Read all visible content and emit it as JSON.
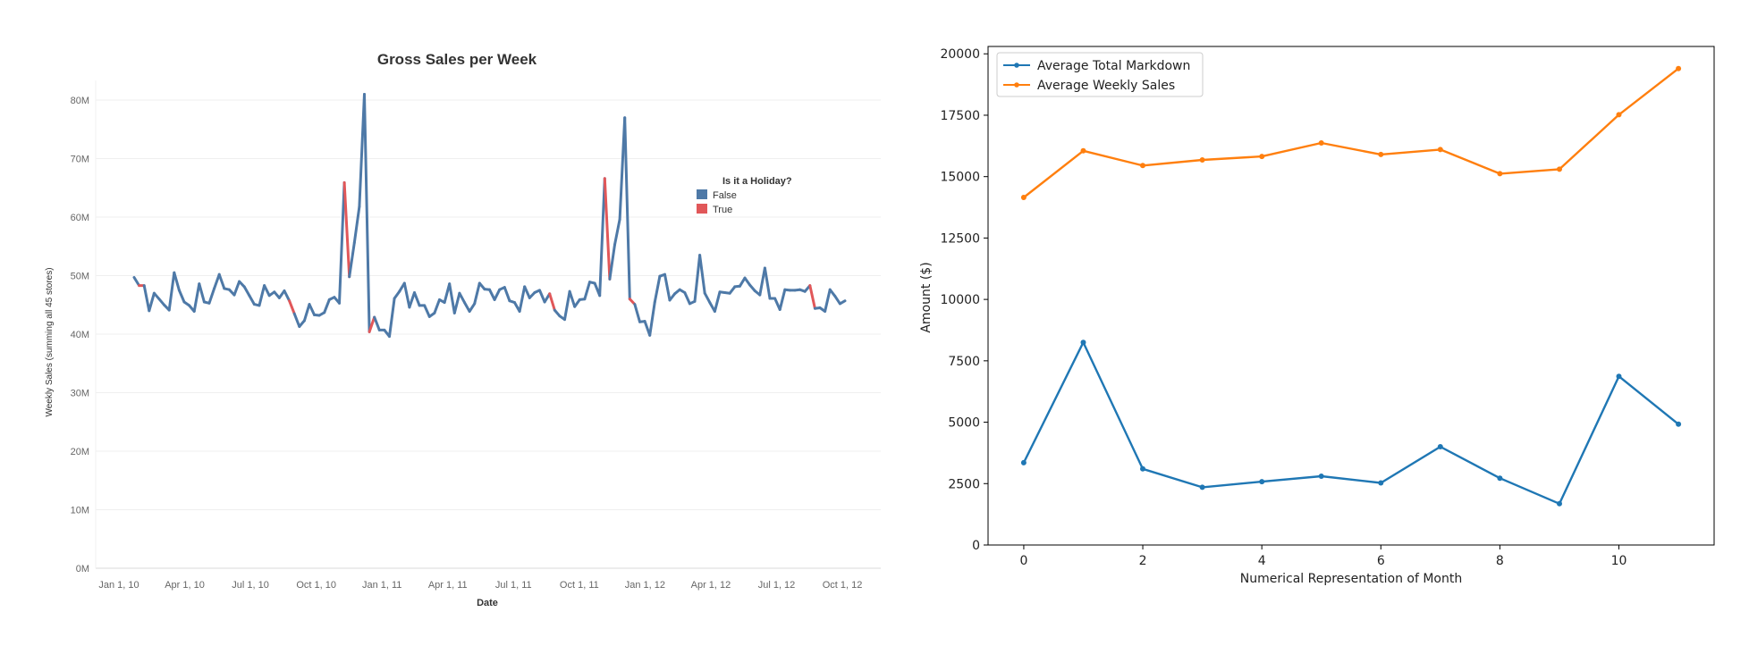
{
  "chart_data": [
    {
      "type": "line",
      "title": "Gross Sales per Week",
      "xlabel": "Date",
      "ylabel": "Weekly Sales (summing all 45 stores)",
      "y_ticks": [
        "0M",
        "10M",
        "20M",
        "30M",
        "40M",
        "50M",
        "60M",
        "70M",
        "80M"
      ],
      "x_ticks": [
        "Jan 1, 10",
        "Apr 1, 10",
        "Jul 1, 10",
        "Oct 1, 10",
        "Jan 1, 11",
        "Apr 1, 11",
        "Jul 1, 11",
        "Oct 1, 11",
        "Jan 1, 12",
        "Apr 1, 12",
        "Jul 1, 12",
        "Oct 1, 12"
      ],
      "ylim": [
        0,
        85
      ],
      "x_unit": "weeks (Date)",
      "legend": {
        "title": "Is it a Holiday?",
        "entries": [
          {
            "label": "False",
            "color": "#4e79a7"
          },
          {
            "label": "True",
            "color": "#e15759"
          }
        ],
        "placement": "top-right"
      },
      "grid": true,
      "series": [
        {
          "color": "#4e79a7",
          "values": [
            49.7,
            48.3,
            48.3,
            44.0,
            47.0,
            46.0,
            45.0,
            44.1,
            50.5,
            47.5,
            45.5,
            44.9,
            43.9,
            48.6,
            45.5,
            45.3,
            47.8,
            50.2,
            47.8,
            47.6,
            46.7,
            49.0,
            48.1,
            46.6,
            45.1,
            44.9,
            48.3,
            46.6,
            47.2,
            46.2,
            47.4,
            45.7,
            43.5,
            41.3,
            42.3,
            45.1,
            43.3,
            43.2,
            43.7,
            45.9,
            46.3,
            45.3,
            65.9,
            49.8,
            55.6,
            61.8,
            81.0,
            40.4,
            42.9,
            40.7,
            40.7,
            39.6,
            46.1,
            47.3,
            48.7,
            44.6,
            47.1,
            44.9,
            44.9,
            43.0,
            43.6,
            45.9,
            45.4,
            48.6,
            43.6,
            47.0,
            45.4,
            43.9,
            45.2,
            48.7,
            47.7,
            47.6,
            45.9,
            47.6,
            48.0,
            45.7,
            45.4,
            43.9,
            48.1,
            46.2,
            47.1,
            47.5,
            45.5,
            46.9,
            44.1,
            43.1,
            42.5,
            47.3,
            44.7,
            45.9,
            46.0,
            48.9,
            48.7,
            46.6,
            66.6,
            49.4,
            55.3,
            59.6,
            77.0,
            46.0,
            45.1,
            42.1,
            42.2,
            39.8,
            45.5,
            49.9,
            50.2,
            45.8,
            46.9,
            47.6,
            47.1,
            45.2,
            45.6,
            53.5,
            47.0,
            45.4,
            43.9,
            47.2,
            47.1,
            47.0,
            48.1,
            48.2,
            49.6,
            48.4,
            47.4,
            46.7,
            51.3,
            46.1,
            46.1,
            44.2,
            47.6,
            47.5,
            47.5,
            47.6,
            47.3,
            48.3,
            44.4,
            44.5,
            43.9,
            47.6,
            46.5,
            45.2,
            45.7
          ],
          "holiday_weeks": [
            1,
            31,
            42,
            47,
            83,
            94,
            99,
            135
          ]
        }
      ]
    },
    {
      "type": "line",
      "title": "",
      "xlabel": "Numerical Representation of Month",
      "ylabel": "Amount ($)",
      "x": [
        0,
        1,
        2,
        3,
        4,
        5,
        6,
        7,
        8,
        9,
        10,
        11
      ],
      "x_ticks": [
        "0",
        "2",
        "4",
        "6",
        "8",
        "10"
      ],
      "y_ticks": [
        "0",
        "2500",
        "5000",
        "7500",
        "10000",
        "12500",
        "15000",
        "17500",
        "20000"
      ],
      "xlim": [
        -0.6,
        11.6
      ],
      "ylim": [
        0,
        20300
      ],
      "grid": false,
      "legend_placement": "top-left",
      "series": [
        {
          "name": "Average Total Markdown",
          "color": "#1f77b4",
          "values": [
            3350,
            8250,
            3100,
            2350,
            2580,
            2800,
            2530,
            4000,
            2720,
            1680,
            6870,
            4920
          ]
        },
        {
          "name": "Average Weekly Sales",
          "color": "#ff7f0e",
          "values": [
            14150,
            16050,
            15450,
            15680,
            15820,
            16370,
            15900,
            16100,
            15120,
            15300,
            17520,
            19400
          ]
        }
      ]
    }
  ]
}
